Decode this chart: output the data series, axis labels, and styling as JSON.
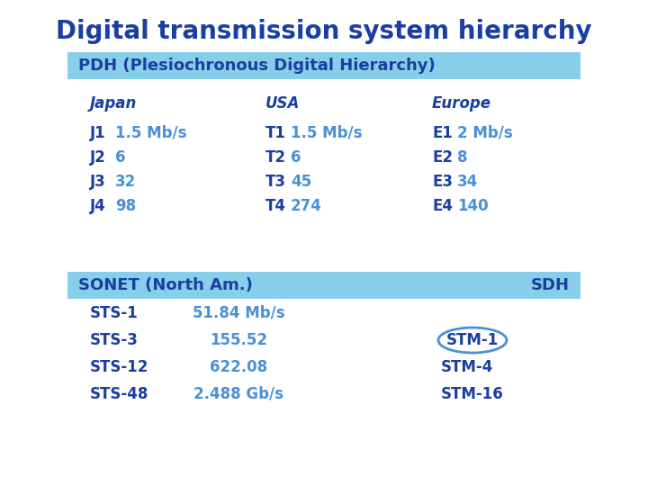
{
  "title": "Digital transmission system hierarchy",
  "title_color": "#1a3fa0",
  "title_fontsize": 20,
  "bg_color": "#ffffff",
  "pdh_label": "PDH (Plesiochronous Digital Hierarchy)",
  "pdh_bg": "#87CEEB",
  "sonet_label": "SONET (North Am.)",
  "sdh_label": "SDH",
  "sonet_bg": "#87CEEB",
  "dark_blue": "#1a3fa0",
  "light_blue": "#4a90d9",
  "japan_header": "Japan",
  "usa_header": "USA",
  "europe_header": "Europe",
  "japan_labels": [
    "J1",
    "J2",
    "J3",
    "J4"
  ],
  "japan_values": [
    "1.5 Mb/s",
    "6",
    "32",
    "98"
  ],
  "usa_labels": [
    "T1",
    "T2",
    "T3",
    "T4"
  ],
  "usa_values": [
    "1.5 Mb/s",
    "6",
    "45",
    "274"
  ],
  "europe_labels": [
    "E1",
    "E2",
    "E3",
    "E4"
  ],
  "europe_values": [
    "2 Mb/s",
    "8",
    "34",
    "140"
  ],
  "sts_labels": [
    "STS-1",
    "STS-3",
    "STS-12",
    "STS-48"
  ],
  "sts_values": [
    "51.84 Mb/s",
    "155.52",
    "622.08",
    "2.488 Gb/s"
  ],
  "stm_labels": [
    "STM-1",
    "STM-4",
    "STM-16"
  ],
  "stm_circle_label": "STM-1",
  "fig_w": 7.2,
  "fig_h": 5.4,
  "dpi": 100
}
